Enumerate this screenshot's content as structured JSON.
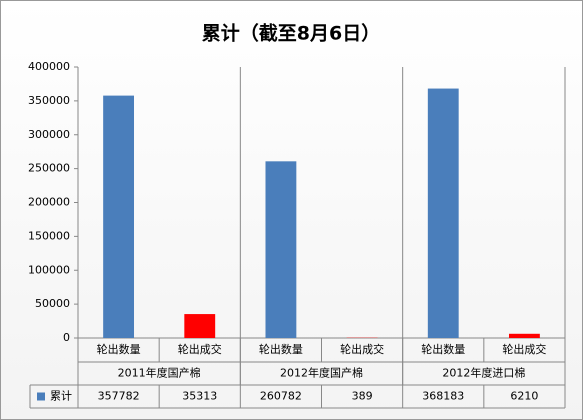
{
  "chart_data": {
    "type": "bar",
    "title": "累计（截至8月6日）",
    "categories": [
      "轮出数量",
      "轮出成交",
      "轮出数量",
      "轮出成交",
      "轮出数量",
      "轮出成交"
    ],
    "groups": [
      "2011年度国产棉",
      "2012年度国产棉",
      "2012年度进口棉"
    ],
    "series": [
      {
        "name": "累计",
        "color": "#4a7ebb",
        "colors": [
          "#4a7ebb",
          "#ff0000",
          "#4a7ebb",
          "#ff0000",
          "#4a7ebb",
          "#ff0000"
        ],
        "values": [
          357782,
          35313,
          260782,
          389,
          368183,
          6210
        ]
      }
    ],
    "ylim": [
      0,
      400000
    ],
    "yticks": [
      0,
      50000,
      100000,
      150000,
      200000,
      250000,
      300000,
      350000,
      400000
    ]
  }
}
